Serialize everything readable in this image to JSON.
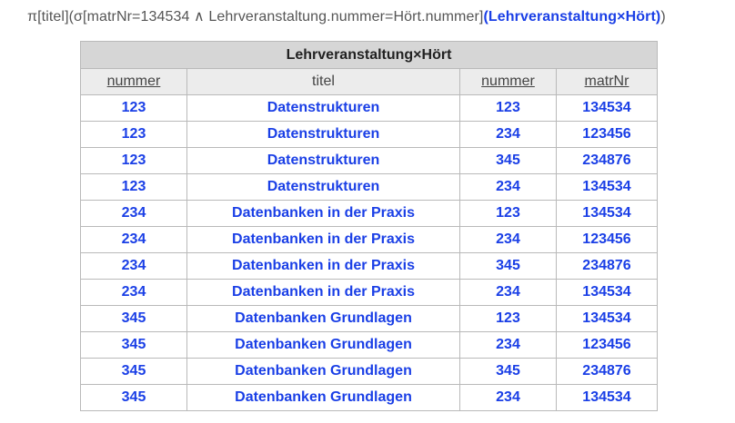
{
  "expression": {
    "prefix": "π[titel](σ[matrNr=134534 ∧ Lehrveranstaltung.nummer=Hört.nummer]",
    "relation": "(Lehrveranstaltung×Hört)",
    "suffix": ")"
  },
  "table": {
    "caption": "Lehrveranstaltung×Hört",
    "columns": [
      {
        "label": "nummer",
        "underlined": true
      },
      {
        "label": "titel",
        "underlined": false
      },
      {
        "label": "nummer",
        "underlined": true
      },
      {
        "label": "matrNr",
        "underlined": true
      }
    ],
    "rows": [
      [
        "123",
        "Datenstrukturen",
        "123",
        "134534"
      ],
      [
        "123",
        "Datenstrukturen",
        "234",
        "123456"
      ],
      [
        "123",
        "Datenstrukturen",
        "345",
        "234876"
      ],
      [
        "123",
        "Datenstrukturen",
        "234",
        "134534"
      ],
      [
        "234",
        "Datenbanken in der Praxis",
        "123",
        "134534"
      ],
      [
        "234",
        "Datenbanken in der Praxis",
        "234",
        "123456"
      ],
      [
        "234",
        "Datenbanken in der Praxis",
        "345",
        "234876"
      ],
      [
        "234",
        "Datenbanken in der Praxis",
        "234",
        "134534"
      ],
      [
        "345",
        "Datenbanken Grundlagen",
        "123",
        "134534"
      ],
      [
        "345",
        "Datenbanken Grundlagen",
        "234",
        "123456"
      ],
      [
        "345",
        "Datenbanken Grundlagen",
        "345",
        "234876"
      ],
      [
        "345",
        "Datenbanken Grundlagen",
        "234",
        "134534"
      ]
    ]
  },
  "colors": {
    "highlight": "#1a3fe6",
    "caption_bg": "#d6d6d6",
    "header_bg": "#ececec",
    "border": "#b9b9b9"
  }
}
